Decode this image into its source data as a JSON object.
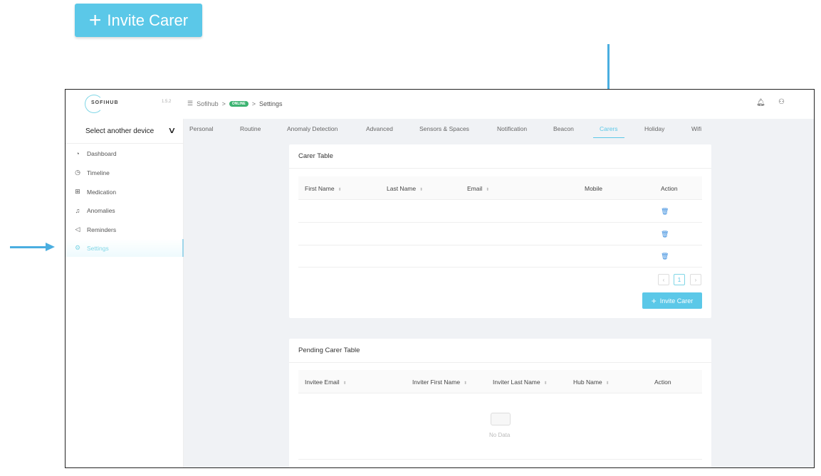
{
  "callout_button": {
    "label": "Invite Carer",
    "icon": "plus-icon"
  },
  "header": {
    "logo": "SOFIHUB",
    "version": "1.5.2",
    "breadcrumb": {
      "root": "Sofihub",
      "separator": ">",
      "status": "ONLINE",
      "page": "Settings"
    },
    "icons": [
      "bell-icon",
      "user-icon"
    ]
  },
  "sidebar": {
    "device_select": "Select another device",
    "items": [
      {
        "label": "Dashboard",
        "icon": "dashboard-icon"
      },
      {
        "label": "Timeline",
        "icon": "clock-icon"
      },
      {
        "label": "Medication",
        "icon": "medication-icon"
      },
      {
        "label": "Anomalies",
        "icon": "bell-icon"
      },
      {
        "label": "Reminders",
        "icon": "speaker-icon"
      },
      {
        "label": "Settings",
        "icon": "gear-icon",
        "active": true
      }
    ]
  },
  "tabs": [
    "Personal",
    "Routine",
    "Anomaly Detection",
    "Advanced",
    "Sensors & Spaces",
    "Notification",
    "Beacon",
    "Carers",
    "Holiday",
    "Wifi"
  ],
  "active_tab": "Carers",
  "carer_table": {
    "title": "Carer Table",
    "columns": [
      "First Name",
      "Last Name",
      "Email",
      "Mobile",
      "Action"
    ],
    "rows": 3,
    "page": "1",
    "invite_label": "Invite Carer"
  },
  "pending_table": {
    "title": "Pending Carer Table",
    "columns": [
      "Invitee Email",
      "Inviter First Name",
      "Inviter Last Name",
      "Hub Name",
      "Action"
    ],
    "empty": "No Data"
  },
  "colors": {
    "accent": "#5bc8e8",
    "online": "#3cb371",
    "arrow": "#4aaee0"
  }
}
